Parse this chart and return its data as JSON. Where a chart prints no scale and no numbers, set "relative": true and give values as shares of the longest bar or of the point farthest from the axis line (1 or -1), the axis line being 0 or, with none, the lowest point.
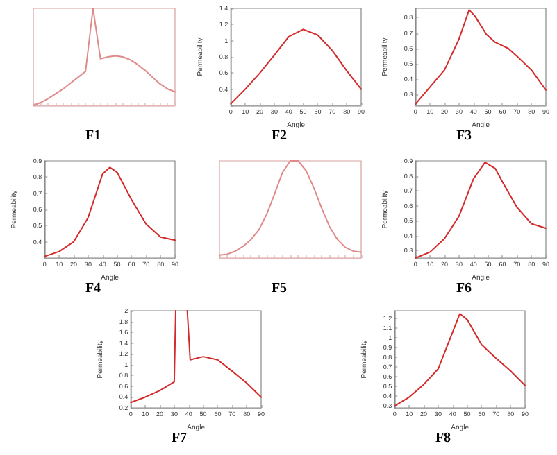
{
  "chart_data": [
    {
      "type": "line",
      "title": "F1",
      "relative": true,
      "categories": [
        null,
        null,
        null,
        null,
        null,
        null,
        null,
        null,
        null,
        null,
        null,
        null,
        null,
        null,
        null,
        null,
        null,
        null,
        null,
        null
      ],
      "series": [
        {
          "color": "#e08a8a",
          "values": [
            0,
            0.03,
            0.07,
            0.12,
            0.17,
            0.23,
            0.29,
            0.35,
            1,
            0.48,
            0.5,
            0.51,
            0.5,
            0.47,
            0.42,
            0.36,
            0.29,
            0.22,
            0.17,
            0.14
          ]
        }
      ]
    },
    {
      "type": "line",
      "title": "F2",
      "xlabel": "Angle",
      "ylabel": "Permeability",
      "x": [
        0,
        10,
        20,
        30,
        40,
        50,
        60,
        70,
        80,
        90
      ],
      "series": [
        {
          "color": "#d42a2a",
          "values": [
            0.22,
            0.4,
            0.6,
            0.82,
            1.05,
            1.14,
            1.07,
            0.88,
            0.63,
            0.4
          ]
        }
      ],
      "xlim": [
        0,
        90
      ],
      "xticks": [
        0,
        10,
        20,
        30,
        40,
        50,
        60,
        70,
        80,
        90
      ],
      "ylim": [
        0.2,
        1.4
      ],
      "yticks": [
        {
          "value": 0.2,
          "label": null
        },
        0.4,
        0.6,
        0.8,
        1,
        1.2,
        1.4
      ]
    },
    {
      "type": "line",
      "title": "F3",
      "xlabel": "Angle",
      "ylabel": "Permeability",
      "x": [
        0,
        10,
        20,
        30,
        37,
        41,
        49,
        55,
        64,
        70,
        80,
        90
      ],
      "series": [
        {
          "color": "#d42a2a",
          "values": [
            0.24,
            0.35,
            0.46,
            0.66,
            0.85,
            0.81,
            0.69,
            0.64,
            0.6,
            0.55,
            0.46,
            0.33
          ]
        }
      ],
      "xlim": [
        0,
        90
      ],
      "xticks": [
        0,
        10,
        20,
        30,
        40,
        50,
        60,
        70,
        80,
        90
      ],
      "ylim": [
        0.23,
        0.86
      ],
      "yticks": [
        0.3,
        0.4,
        0.5,
        0.6,
        0.7,
        0.8
      ]
    },
    {
      "type": "line",
      "title": "F4",
      "xlabel": "Angle",
      "ylabel": "Permeability",
      "x": [
        0,
        10,
        20,
        30,
        40,
        45,
        50,
        60,
        70,
        80,
        90
      ],
      "series": [
        {
          "color": "#d42a2a",
          "values": [
            0.31,
            0.34,
            0.4,
            0.55,
            0.82,
            0.86,
            0.83,
            0.66,
            0.51,
            0.43,
            0.41
          ]
        }
      ],
      "xlim": [
        0,
        90
      ],
      "xticks": [
        0,
        10,
        20,
        30,
        40,
        50,
        60,
        70,
        80,
        90
      ],
      "ylim": [
        0.3,
        0.9
      ],
      "yticks": [
        0.4,
        0.5,
        0.6,
        0.7,
        0.8,
        0.9
      ]
    },
    {
      "type": "line",
      "title": "F5",
      "relative": true,
      "categories": [
        null,
        null,
        null,
        null,
        null,
        null,
        null,
        null,
        null,
        null,
        null,
        null,
        null,
        null,
        null,
        null,
        null,
        null,
        null
      ],
      "series": [
        {
          "color": "#e08a8a",
          "values": [
            0.03,
            0.04,
            0.07,
            0.12,
            0.19,
            0.29,
            0.45,
            0.66,
            0.88,
            1,
            1,
            0.9,
            0.72,
            0.51,
            0.32,
            0.19,
            0.11,
            0.07,
            0.06
          ]
        }
      ]
    },
    {
      "type": "line",
      "title": "F6",
      "xlabel": "Angle",
      "ylabel": "Permeability",
      "x": [
        0,
        10,
        20,
        30,
        40,
        48,
        55,
        60,
        70,
        80,
        90
      ],
      "series": [
        {
          "color": "#d42a2a",
          "values": [
            0.25,
            0.29,
            0.38,
            0.53,
            0.78,
            0.89,
            0.85,
            0.76,
            0.59,
            0.48,
            0.45
          ]
        }
      ],
      "xlim": [
        0,
        90
      ],
      "xticks": [
        0,
        10,
        20,
        30,
        40,
        50,
        60,
        70,
        80,
        90
      ],
      "ylim": [
        0.25,
        0.9
      ],
      "yticks": [
        0.3,
        0.4,
        0.5,
        0.6,
        0.7,
        0.8,
        0.9
      ]
    },
    {
      "type": "line",
      "title": "F7",
      "xlabel": "Angle",
      "ylabel": "Permeability",
      "x": [
        0,
        10,
        20,
        30,
        31,
        35,
        39,
        41,
        50,
        60,
        70,
        80,
        90
      ],
      "series": [
        {
          "color": "#d42a2a",
          "values": [
            0.3,
            0.4,
            0.52,
            0.68,
            2,
            null,
            2,
            1.09,
            1.15,
            1.09,
            0.88,
            0.66,
            0.4
          ]
        }
      ],
      "xlim": [
        0,
        90
      ],
      "xticks": [
        0,
        10,
        20,
        30,
        40,
        50,
        60,
        70,
        80,
        90
      ],
      "ylim": [
        0.2,
        2
      ],
      "yticks": [
        0.2,
        0.4,
        0.6,
        0.8,
        1,
        1.2,
        1.4,
        1.6,
        1.8,
        2
      ]
    },
    {
      "type": "line",
      "title": "F8",
      "xlabel": "Angle",
      "ylabel": "Permeability",
      "x": [
        0,
        10,
        20,
        30,
        40,
        45,
        50,
        60,
        70,
        80,
        90
      ],
      "series": [
        {
          "color": "#d42a2a",
          "values": [
            0.3,
            0.39,
            0.52,
            0.68,
            1.06,
            1.25,
            1.19,
            0.93,
            0.79,
            0.66,
            0.51
          ]
        }
      ],
      "xlim": [
        0,
        90
      ],
      "xticks": [
        0,
        10,
        20,
        30,
        40,
        50,
        60,
        70,
        80,
        90
      ],
      "ylim": [
        0.28,
        1.28
      ],
      "yticks": [
        0.3,
        0.4,
        0.5,
        0.6,
        0.7,
        0.8,
        0.9,
        1,
        1.1,
        1.2
      ]
    }
  ]
}
